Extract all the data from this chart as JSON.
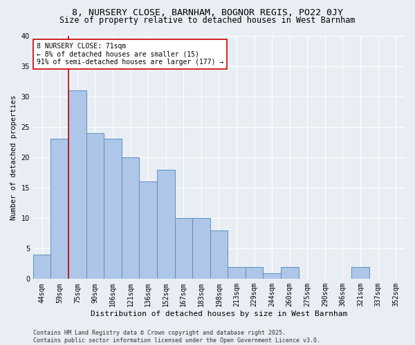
{
  "title_line1": "8, NURSERY CLOSE, BARNHAM, BOGNOR REGIS, PO22 0JY",
  "title_line2": "Size of property relative to detached houses in West Barnham",
  "xlabel": "Distribution of detached houses by size in West Barnham",
  "ylabel": "Number of detached properties",
  "categories": [
    "44sqm",
    "59sqm",
    "75sqm",
    "90sqm",
    "106sqm",
    "121sqm",
    "136sqm",
    "152sqm",
    "167sqm",
    "183sqm",
    "198sqm",
    "213sqm",
    "229sqm",
    "244sqm",
    "260sqm",
    "275sqm",
    "290sqm",
    "306sqm",
    "321sqm",
    "337sqm",
    "352sqm"
  ],
  "values": [
    4,
    23,
    31,
    24,
    23,
    20,
    16,
    18,
    10,
    10,
    8,
    2,
    2,
    1,
    2,
    0,
    0,
    0,
    2,
    0,
    0
  ],
  "bar_color": "#aec6e8",
  "bar_edge_color": "#5a8fc0",
  "highlight_line_color": "#cc0000",
  "annotation_text": "8 NURSERY CLOSE: 71sqm\n← 8% of detached houses are smaller (15)\n91% of semi-detached houses are larger (177) →",
  "annotation_box_color": "#ffffff",
  "annotation_box_edge": "#cc0000",
  "ylim": [
    0,
    40
  ],
  "yticks": [
    0,
    5,
    10,
    15,
    20,
    25,
    30,
    35,
    40
  ],
  "bg_color": "#e8eef4",
  "grid_color": "#ffffff",
  "footer_line1": "Contains HM Land Registry data © Crown copyright and database right 2025.",
  "footer_line2": "Contains public sector information licensed under the Open Government Licence v3.0.",
  "title_fontsize": 9.5,
  "subtitle_fontsize": 8.5,
  "axis_label_fontsize": 8,
  "tick_fontsize": 7,
  "annotation_fontsize": 7,
  "footer_fontsize": 6,
  "ylabel_fontsize": 7.5
}
